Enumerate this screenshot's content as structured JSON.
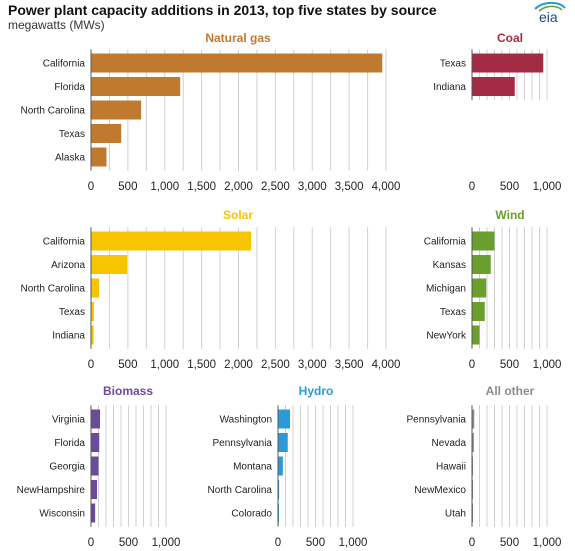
{
  "header": {
    "title": "Power plant capacity additions in 2013, top five states by source",
    "subtitle": "megawatts (MWs)",
    "logo_text": "eia"
  },
  "colors": {
    "natural_gas": "#c07a2f",
    "coal": "#a32c44",
    "solar": "#f7c400",
    "wind": "#6a9e2e",
    "biomass": "#6b4a9c",
    "hydro": "#2a9bd7",
    "all_other": "#8c8c8c",
    "grid": "#d0d0d0",
    "axis": "#555555"
  },
  "chart_data": [
    {
      "type": "bar",
      "orientation": "horizontal",
      "title": "Natural gas",
      "color_key": "natural_gas",
      "categories": [
        "California",
        "Florida",
        "North Carolina",
        "Texas",
        "Alaska"
      ],
      "values": [
        3950,
        1210,
        680,
        410,
        210
      ],
      "xlim": [
        0,
        4000
      ],
      "ticks": [
        0,
        500,
        1000,
        1500,
        2000,
        2500,
        3000,
        3500,
        4000
      ],
      "tick_labels": [
        "0",
        "500",
        "1,000",
        "1,500",
        "2,000",
        "2,500",
        "3,000",
        "3,500",
        "4,000"
      ]
    },
    {
      "type": "bar",
      "orientation": "horizontal",
      "title": "Coal",
      "color_key": "coal",
      "categories": [
        "Texas",
        "Indiana"
      ],
      "values": [
        950,
        570
      ],
      "xlim": [
        0,
        1000
      ],
      "ticks": [
        0,
        500,
        1000
      ],
      "tick_labels": [
        "0",
        "500",
        "1,000"
      ]
    },
    {
      "type": "bar",
      "orientation": "horizontal",
      "title": "Solar",
      "color_key": "solar",
      "categories": [
        "California",
        "Arizona",
        "North Carolina",
        "Texas",
        "Indiana"
      ],
      "values": [
        2170,
        490,
        110,
        40,
        35
      ],
      "xlim": [
        0,
        4000
      ],
      "ticks": [
        0,
        500,
        1000,
        1500,
        2000,
        2500,
        3000,
        3500,
        4000
      ],
      "tick_labels": [
        "0",
        "500",
        "1,000",
        "1,500",
        "2,000",
        "2,500",
        "3,000",
        "3,500",
        "4,000"
      ]
    },
    {
      "type": "bar",
      "orientation": "horizontal",
      "title": "Wind",
      "color_key": "wind",
      "categories": [
        "California",
        "Kansas",
        "Michigan",
        "Texas",
        "NewYork"
      ],
      "values": [
        300,
        250,
        190,
        170,
        100
      ],
      "xlim": [
        0,
        1000
      ],
      "ticks": [
        0,
        500,
        1000
      ],
      "tick_labels": [
        "0",
        "500",
        "1,000"
      ]
    },
    {
      "type": "bar",
      "orientation": "horizontal",
      "title": "Biomass",
      "color_key": "biomass",
      "categories": [
        "Virginia",
        "Florida",
        "Georgia",
        "NewHampshire",
        "Wisconsin"
      ],
      "values": [
        120,
        110,
        100,
        80,
        55
      ],
      "xlim": [
        0,
        1000
      ],
      "ticks": [
        0,
        500,
        1000
      ],
      "tick_labels": [
        "0",
        "500",
        "1,000"
      ]
    },
    {
      "type": "bar",
      "orientation": "horizontal",
      "title": "Hydro",
      "color_key": "hydro",
      "categories": [
        "Washington",
        "Pennsylvania",
        "Montana",
        "North Carolina",
        "Colorado"
      ],
      "values": [
        160,
        130,
        65,
        15,
        5
      ],
      "xlim": [
        0,
        1000
      ],
      "ticks": [
        0,
        500,
        1000
      ],
      "tick_labels": [
        "0",
        "500",
        "1,000"
      ]
    },
    {
      "type": "bar",
      "orientation": "horizontal",
      "title": "All other",
      "color_key": "all_other",
      "categories": [
        "Pennsylvania",
        "Nevada",
        "Hawaii",
        "NewMexico",
        "Utah"
      ],
      "values": [
        30,
        25,
        10,
        8,
        5
      ],
      "xlim": [
        0,
        1000
      ],
      "ticks": [
        0,
        500,
        1000
      ],
      "tick_labels": [
        "0",
        "500",
        "1,000"
      ]
    }
  ]
}
